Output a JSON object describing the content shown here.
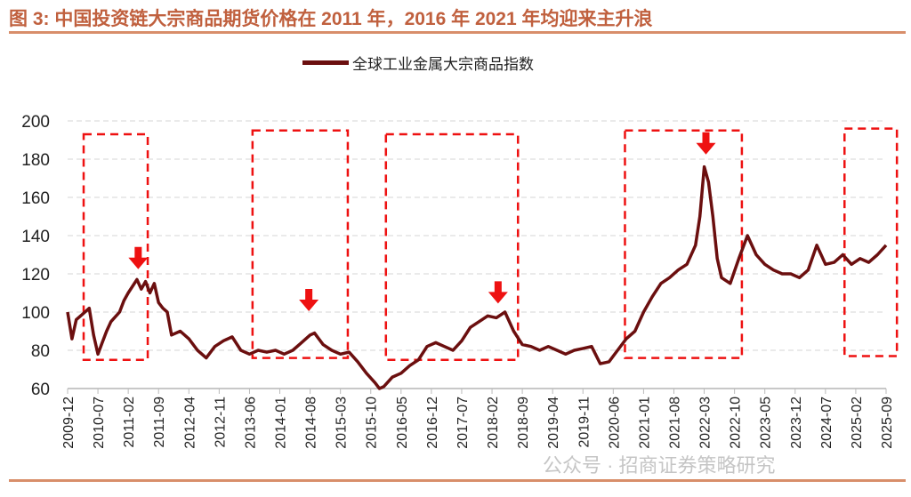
{
  "title": "图 3:  中国投资链大宗商品期货价格在 2011 年，2016 年 2021 年均迎来主升浪",
  "watermark": "公众号 · 招商证券策略研究",
  "chart_data": {
    "type": "line",
    "title": "图 3:  中国投资链大宗商品期货价格在 2011 年，2016 年 2021 年均迎来主升浪",
    "xlabel": "",
    "ylabel": "",
    "ylim": [
      60,
      200
    ],
    "yticks": [
      "60",
      "80",
      "100",
      "120",
      "140",
      "160",
      "180",
      "200"
    ],
    "xticks": [
      "2009-12",
      "2010-07",
      "2011-02",
      "2011-09",
      "2012-04",
      "2012-11",
      "2013-06",
      "2014-01",
      "2014-08",
      "2015-03",
      "2015-10",
      "2016-05",
      "2016-12",
      "2017-07",
      "2018-02",
      "2018-09",
      "2019-04",
      "2019-11",
      "2020-06",
      "2021-01",
      "2021-08",
      "2022-03",
      "2022-10",
      "2023-05",
      "2023-12",
      "2024-07",
      "2025-02",
      "2025-09"
    ],
    "grid": "horizontal-dashed",
    "legend_position": "top-center",
    "series": [
      {
        "name": "全球工业金属大宗商品指数",
        "color": "#6b0f0f",
        "x": [
          "2009-12",
          "2010-01",
          "2010-02",
          "2010-03",
          "2010-05",
          "2010-06",
          "2010-07",
          "2010-08",
          "2010-09",
          "2010-10",
          "2010-12",
          "2011-01",
          "2011-02",
          "2011-04",
          "2011-05",
          "2011-06",
          "2011-07",
          "2011-08",
          "2011-09",
          "2011-10",
          "2011-11",
          "2011-12",
          "2012-02",
          "2012-04",
          "2012-06",
          "2012-08",
          "2012-10",
          "2012-12",
          "2013-02",
          "2013-04",
          "2013-06",
          "2013-08",
          "2013-10",
          "2013-12",
          "2014-02",
          "2014-04",
          "2014-06",
          "2014-08",
          "2014-09",
          "2014-11",
          "2015-01",
          "2015-03",
          "2015-05",
          "2015-07",
          "2015-09",
          "2015-11",
          "2015-12",
          "2016-01",
          "2016-03",
          "2016-05",
          "2016-07",
          "2016-09",
          "2016-11",
          "2017-01",
          "2017-03",
          "2017-05",
          "2017-07",
          "2017-09",
          "2017-11",
          "2018-01",
          "2018-03",
          "2018-05",
          "2018-07",
          "2018-09",
          "2018-11",
          "2019-01",
          "2019-03",
          "2019-05",
          "2019-07",
          "2019-09",
          "2019-11",
          "2020-01",
          "2020-03",
          "2020-05",
          "2020-07",
          "2020-09",
          "2020-11",
          "2021-01",
          "2021-03",
          "2021-05",
          "2021-07",
          "2021-09",
          "2021-11",
          "2022-01",
          "2022-02",
          "2022-03",
          "2022-04",
          "2022-05",
          "2022-06",
          "2022-07",
          "2022-09",
          "2022-11",
          "2023-01",
          "2023-03",
          "2023-05",
          "2023-07",
          "2023-09",
          "2023-11",
          "2024-01",
          "2024-03",
          "2024-05",
          "2024-07",
          "2024-09",
          "2024-11",
          "2025-01",
          "2025-03",
          "2025-05",
          "2025-07",
          "2025-09"
        ],
        "values": [
          100,
          86,
          96,
          98,
          102,
          88,
          78,
          84,
          90,
          95,
          100,
          106,
          110,
          117,
          112,
          116,
          110,
          115,
          105,
          102,
          100,
          88,
          90,
          86,
          80,
          76,
          82,
          85,
          87,
          80,
          78,
          80,
          79,
          80,
          78,
          80,
          84,
          88,
          89,
          83,
          80,
          78,
          79,
          74,
          68,
          63,
          60,
          61,
          66,
          68,
          72,
          75,
          82,
          84,
          82,
          80,
          85,
          92,
          95,
          98,
          97,
          100,
          90,
          83,
          82,
          80,
          82,
          80,
          78,
          80,
          81,
          82,
          73,
          74,
          80,
          86,
          90,
          100,
          108,
          115,
          118,
          122,
          125,
          135,
          150,
          176,
          168,
          150,
          128,
          118,
          115,
          128,
          140,
          130,
          125,
          122,
          120,
          120,
          118,
          122,
          135,
          125,
          126,
          130,
          125,
          128,
          126,
          130,
          135
        ]
      }
    ],
    "annotations": {
      "highlight_boxes": 5,
      "arrows": 4,
      "color": "#ee1111"
    }
  }
}
